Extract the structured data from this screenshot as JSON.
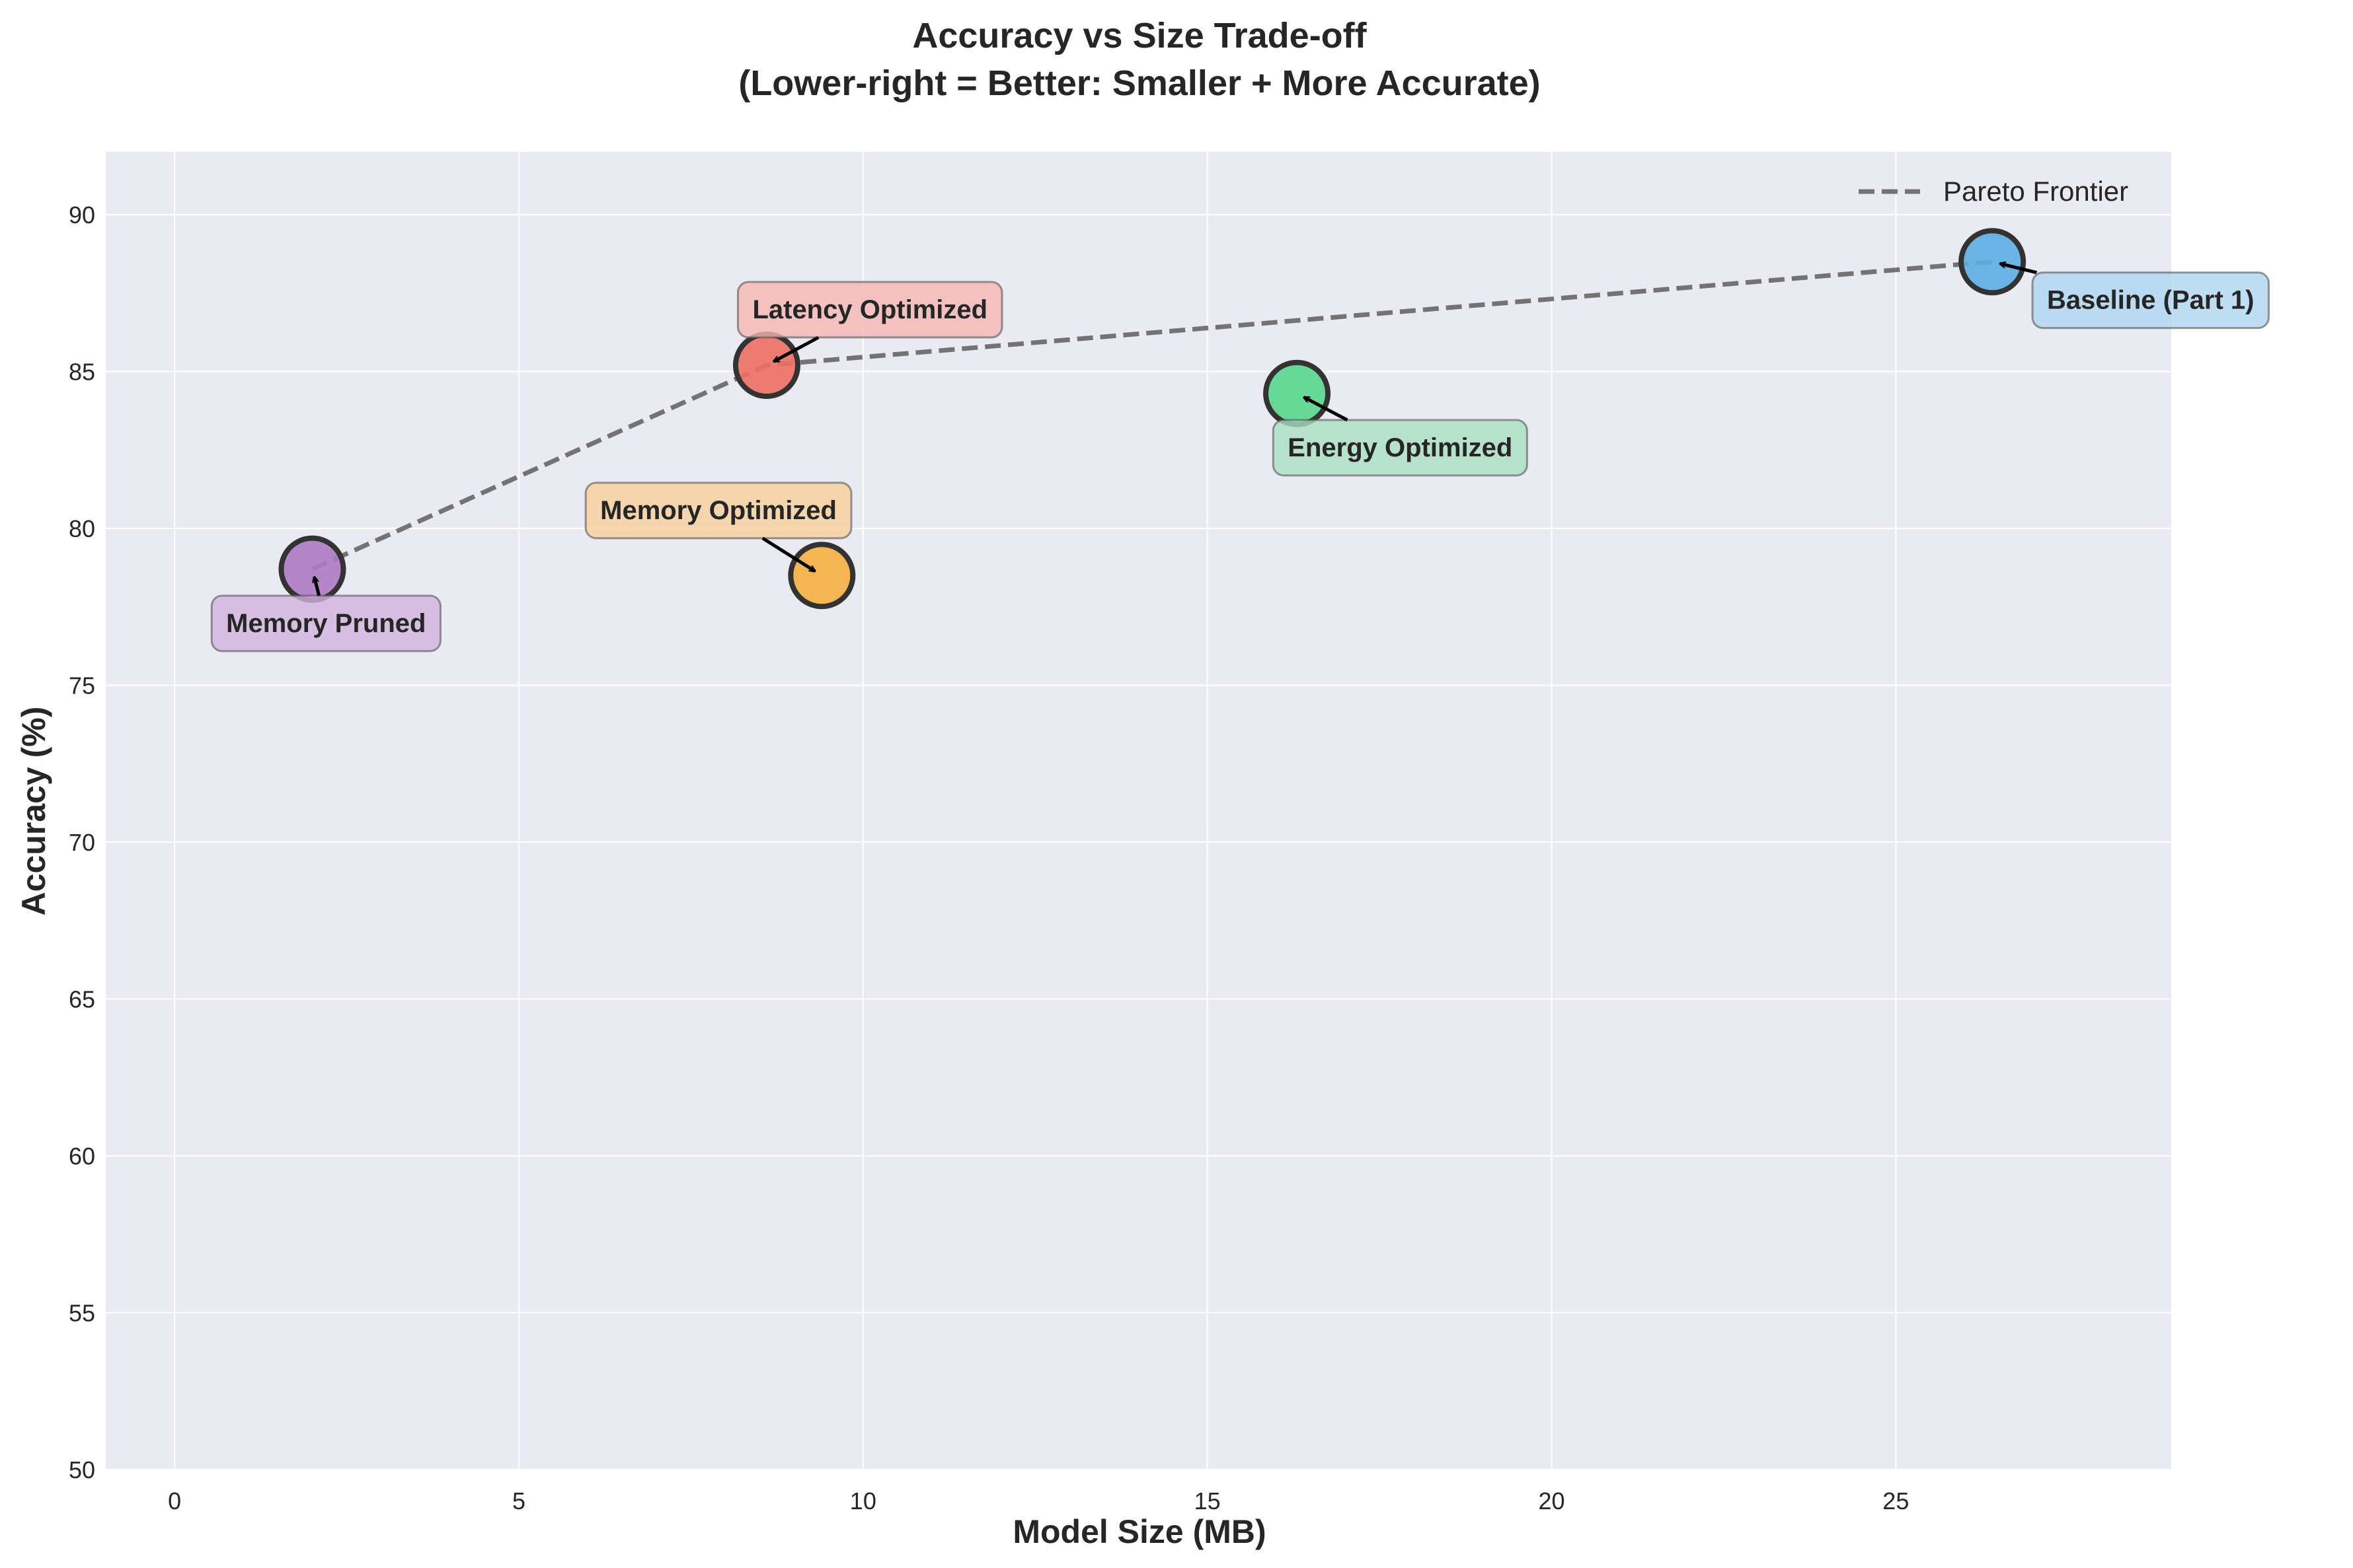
{
  "chart_data": {
    "type": "scatter",
    "title": "Accuracy vs Size Trade-off",
    "subtitle": "(Lower-right = Better: Smaller + More Accurate)",
    "xlabel": "Model Size (MB)",
    "ylabel": "Accuracy (%)",
    "xlim": [
      -1,
      29
    ],
    "ylim": [
      50,
      92
    ],
    "xticks": [
      0,
      5,
      10,
      15,
      20,
      25
    ],
    "yticks": [
      50,
      55,
      60,
      65,
      70,
      75,
      80,
      85,
      90
    ],
    "grid": true,
    "legend": {
      "placement": "upper-right",
      "entries": [
        "Pareto Frontier"
      ]
    },
    "colors": {
      "plot_background": "#eaeaf2",
      "grid": "#ffffff",
      "marker_edge": "#333333",
      "frontier": "#555555"
    },
    "points": [
      {
        "label": "Baseline (Part 1)",
        "x": 26.4,
        "y": 88.5,
        "color": "#5dade2",
        "box_color": "#aed6f1"
      },
      {
        "label": "Latency Optimized",
        "x": 8.6,
        "y": 85.2,
        "color": "#ec7063",
        "box_color": "#f5b7b1"
      },
      {
        "label": "Energy Optimized",
        "x": 16.3,
        "y": 84.3,
        "color": "#58d68d",
        "box_color": "#a9dfbf"
      },
      {
        "label": "Memory Optimized",
        "x": 9.4,
        "y": 78.5,
        "color": "#f5b041",
        "box_color": "#f8cf9c"
      },
      {
        "label": "Memory Pruned",
        "x": 2.0,
        "y": 78.7,
        "color": "#af7ac5",
        "box_color": "#d2b4de"
      }
    ],
    "pareto_frontier": {
      "name": "Pareto Frontier",
      "x": [
        2.0,
        8.6,
        26.4
      ],
      "y": [
        78.7,
        85.2,
        88.5
      ]
    },
    "annotation_offsets_data": [
      {
        "dx": 2.3,
        "dy": -1.2
      },
      {
        "dx": 1.5,
        "dy": 1.8
      },
      {
        "dx": 1.5,
        "dy": -1.7
      },
      {
        "dx": -1.5,
        "dy": 2.1
      },
      {
        "dx": 0.2,
        "dy": -1.7
      }
    ]
  }
}
